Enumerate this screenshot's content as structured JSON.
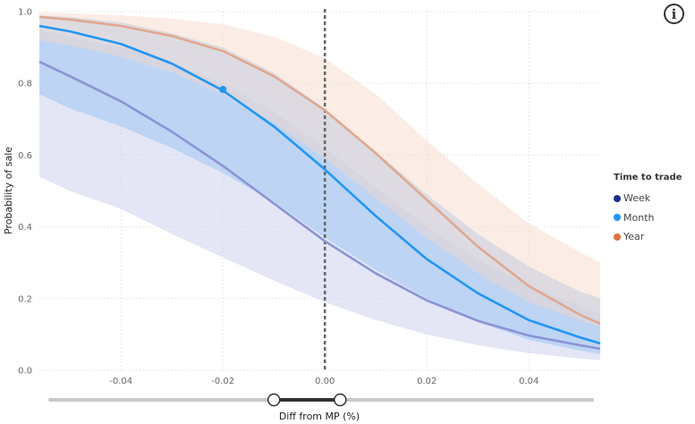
{
  "info_icon": "info-icon",
  "legend": {
    "title": "Time to trade",
    "items": [
      {
        "label": "Week",
        "color": "#1a2f8c"
      },
      {
        "label": "Month",
        "color": "#2196f3"
      },
      {
        "label": "Year",
        "color": "#e07040"
      }
    ]
  },
  "chart_data": {
    "type": "line",
    "xlabel": "Diff from MP (%)",
    "ylabel": "Probability of sale",
    "xlim": [
      -0.056,
      0.054
    ],
    "ylim": [
      0,
      1.0
    ],
    "xticks": [
      "-0.04",
      "-0.02",
      "0.00",
      "0.02",
      "0.04"
    ],
    "xtick_values": [
      -0.04,
      -0.02,
      0.0,
      0.02,
      0.04
    ],
    "yticks": [
      "0.0",
      "0.2",
      "0.4",
      "0.6",
      "0.8",
      "1.0"
    ],
    "ytick_values": [
      0.0,
      0.2,
      0.4,
      0.6,
      0.8,
      1.0
    ],
    "grid": true,
    "reference_line_x": 0.0,
    "x": [
      -0.056,
      -0.05,
      -0.04,
      -0.03,
      -0.02,
      -0.01,
      0.0,
      0.01,
      0.02,
      0.03,
      0.04,
      0.05,
      0.054
    ],
    "series": [
      {
        "name": "Week",
        "line_color": "#8b93d6",
        "band_color": "#cdd2ee",
        "values": [
          0.86,
          0.82,
          0.75,
          0.665,
          0.57,
          0.465,
          0.36,
          0.27,
          0.195,
          0.138,
          0.097,
          0.07,
          0.06
        ],
        "lower": [
          0.54,
          0.5,
          0.45,
          0.38,
          0.315,
          0.25,
          0.19,
          0.14,
          0.1,
          0.07,
          0.048,
          0.033,
          0.028
        ],
        "upper": [
          0.95,
          0.93,
          0.9,
          0.86,
          0.8,
          0.72,
          0.62,
          0.51,
          0.4,
          0.31,
          0.235,
          0.18,
          0.16
        ]
      },
      {
        "name": "Month",
        "line_color": "#2196f3",
        "band_color": "#9cc4f2",
        "values": [
          0.96,
          0.945,
          0.91,
          0.855,
          0.78,
          0.68,
          0.56,
          0.43,
          0.31,
          0.215,
          0.14,
          0.092,
          0.075
        ],
        "lower": [
          0.77,
          0.73,
          0.68,
          0.62,
          0.55,
          0.47,
          0.37,
          0.28,
          0.2,
          0.135,
          0.085,
          0.055,
          0.045
        ],
        "upper": [
          0.99,
          0.985,
          0.97,
          0.94,
          0.9,
          0.83,
          0.73,
          0.61,
          0.49,
          0.38,
          0.29,
          0.22,
          0.2
        ]
      },
      {
        "name": "Year",
        "line_color": "#e0a890",
        "band_color": "#f6d8c6",
        "values": [
          0.985,
          0.978,
          0.96,
          0.932,
          0.89,
          0.82,
          0.725,
          0.605,
          0.475,
          0.345,
          0.235,
          0.155,
          0.13
        ],
        "lower": [
          0.92,
          0.905,
          0.875,
          0.83,
          0.77,
          0.69,
          0.59,
          0.48,
          0.37,
          0.27,
          0.19,
          0.14,
          0.12
        ],
        "upper": [
          0.998,
          0.995,
          0.99,
          0.98,
          0.965,
          0.93,
          0.87,
          0.77,
          0.64,
          0.52,
          0.41,
          0.33,
          0.3
        ]
      }
    ],
    "highlight_point": {
      "series": "Month",
      "x": -0.02,
      "y": 0.783
    }
  },
  "slider": {
    "range": [
      -0.01,
      0.003
    ]
  }
}
